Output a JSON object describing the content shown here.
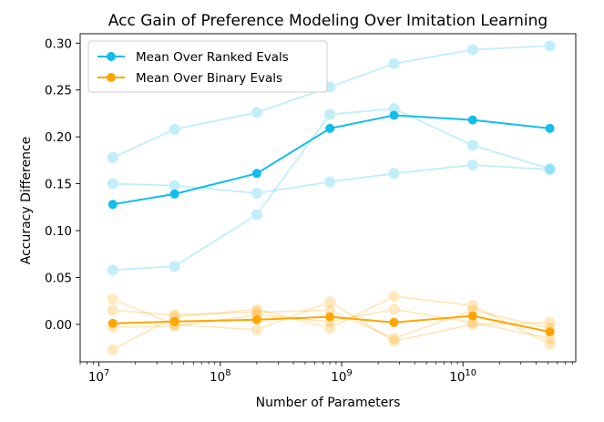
{
  "chart_data": {
    "type": "line",
    "title": "Acc Gain of Preference Modeling Over Imitation Learning",
    "xlabel": "Number of Parameters",
    "ylabel": "Accuracy Difference",
    "xscale": "log",
    "xlim": [
      7000000.0,
      85000000000.0
    ],
    "ylim": [
      -0.04,
      0.31
    ],
    "yticks": [
      0.0,
      0.05,
      0.1,
      0.15,
      0.2,
      0.25,
      0.3
    ],
    "ytick_labels": [
      "0.00",
      "0.05",
      "0.10",
      "0.15",
      "0.20",
      "0.25",
      "0.30"
    ],
    "xtick_labels": [
      {
        "base": "10",
        "exp": "7"
      },
      {
        "base": "10",
        "exp": "8"
      },
      {
        "base": "10",
        "exp": "9"
      },
      {
        "base": "10",
        "exp": "10"
      }
    ],
    "x": [
      13000000.0,
      42000000.0,
      200000000.0,
      800000000.0,
      2700000000.0,
      12000000000.0,
      52000000000.0
    ],
    "legend_position": "top-left",
    "colors": {
      "ranked": "#12bdeb",
      "binary": "#ffa500"
    },
    "series": [
      {
        "name": "Mean Over Ranked Evals",
        "group": "ranked",
        "role": "mean",
        "values": [
          0.128,
          0.139,
          0.161,
          0.209,
          0.223,
          0.218,
          0.209
        ]
      },
      {
        "group": "ranked",
        "role": "component",
        "values": [
          0.178,
          0.208,
          0.226,
          0.253,
          0.278,
          0.293,
          0.297
        ]
      },
      {
        "group": "ranked",
        "role": "component",
        "values": [
          0.15,
          0.148,
          0.14,
          0.152,
          0.161,
          0.17,
          0.165
        ]
      },
      {
        "group": "ranked",
        "role": "component",
        "values": [
          0.058,
          0.062,
          0.117,
          0.224,
          0.23,
          0.191,
          0.166
        ]
      },
      {
        "name": "Mean Over Binary Evals",
        "group": "binary",
        "role": "mean",
        "values": [
          0.001,
          0.003,
          0.005,
          0.008,
          0.002,
          0.009,
          -0.008
        ]
      },
      {
        "group": "binary",
        "role": "component",
        "values": [
          0.027,
          0.0,
          -0.006,
          0.024,
          -0.018,
          0.0,
          0.002
        ]
      },
      {
        "group": "binary",
        "role": "component",
        "values": [
          -0.027,
          0.008,
          0.016,
          -0.004,
          0.03,
          0.02,
          -0.021
        ]
      },
      {
        "group": "binary",
        "role": "component",
        "values": [
          0.015,
          0.01,
          0.013,
          0.015,
          -0.015,
          0.015,
          -0.004
        ]
      },
      {
        "group": "binary",
        "role": "component",
        "values": [
          -0.003,
          -0.002,
          0.01,
          0.003,
          0.016,
          0.002,
          -0.015
        ]
      }
    ]
  }
}
